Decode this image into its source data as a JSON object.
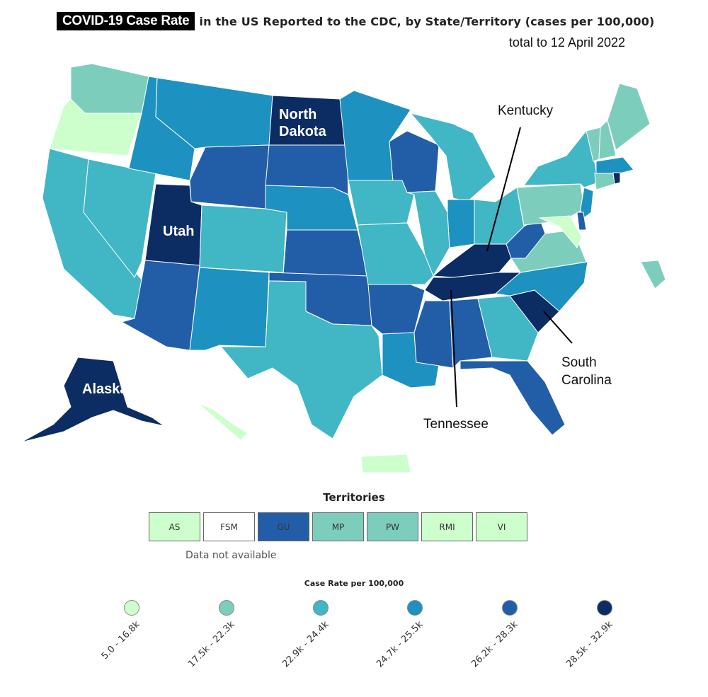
{
  "header": {
    "badge": "COVID-19 Case Rate",
    "title_rest": "in the US Reported to the CDC, by State/Territory (cases per 100,000)",
    "subtitle": "total to 12 April 2022"
  },
  "colors": {
    "c1": "#ccffcc",
    "c2": "#7dcdbd",
    "c3": "#41b6c4",
    "c4": "#1d91c0",
    "c5": "#225ea8",
    "c6": "#0c2c64"
  },
  "map_labels": {
    "north_dakota": "North Dakota",
    "north_dakota_l1": "North",
    "north_dakota_l2": "Dakota",
    "utah": "Utah",
    "alaska": "Alaska",
    "kentucky": "Kentucky",
    "tennessee": "Tennessee",
    "south_carolina_l1": "South",
    "south_carolina_l2": "Carolina"
  },
  "territories": {
    "title": "Territories",
    "items": [
      {
        "code": "AS",
        "color": "#ccffcc"
      },
      {
        "code": "FSM",
        "color": "#ffffff"
      },
      {
        "code": "GU",
        "color": "#225ea8"
      },
      {
        "code": "MP",
        "color": "#7dcdbd"
      },
      {
        "code": "PW",
        "color": "#7dcdbd"
      },
      {
        "code": "RMI",
        "color": "#ccffcc"
      },
      {
        "code": "VI",
        "color": "#ccffcc"
      }
    ],
    "note": "Data not available"
  },
  "legend": {
    "title": "Case Rate per 100,000",
    "bins": [
      {
        "label": "5.0 - 16.8k",
        "color": "#ccffcc"
      },
      {
        "label": "17.5k - 22.3k",
        "color": "#7dcdbd"
      },
      {
        "label": "22.9k - 24.4k",
        "color": "#41b6c4"
      },
      {
        "label": "24.7k - 25.5k",
        "color": "#1d91c0"
      },
      {
        "label": "26.2k - 28.3k",
        "color": "#225ea8"
      },
      {
        "label": "28.5k - 32.9k",
        "color": "#0c2c64"
      }
    ]
  }
}
